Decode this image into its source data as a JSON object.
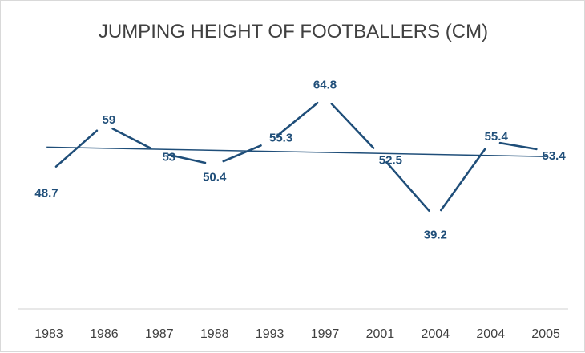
{
  "chart_data": {
    "type": "line",
    "title": "JUMPING HEIGHT OF FOOTBALLERS (CM)",
    "xlabel": "",
    "ylabel": "",
    "categories": [
      "1983",
      "1986",
      "1987",
      "1988",
      "1993",
      "1997",
      "2001",
      "2004",
      "2004",
      "2005"
    ],
    "series": [
      {
        "name": "Jumping height",
        "values": [
          48.7,
          59,
          53,
          50.4,
          55.3,
          64.8,
          52.5,
          39.2,
          55.4,
          53.4
        ],
        "labels": [
          "48.7",
          "59",
          "53",
          "50.4",
          "55.3",
          "64.8",
          "52.5",
          "39.2",
          "55.4",
          "53.4"
        ]
      }
    ],
    "trendline": {
      "type": "linear"
    },
    "ylim": [
      20,
      80
    ],
    "grid": false,
    "legend": "none",
    "colors": {
      "series": "#1f4e79",
      "axis": "#d9d9d9",
      "text": "#404040"
    }
  }
}
